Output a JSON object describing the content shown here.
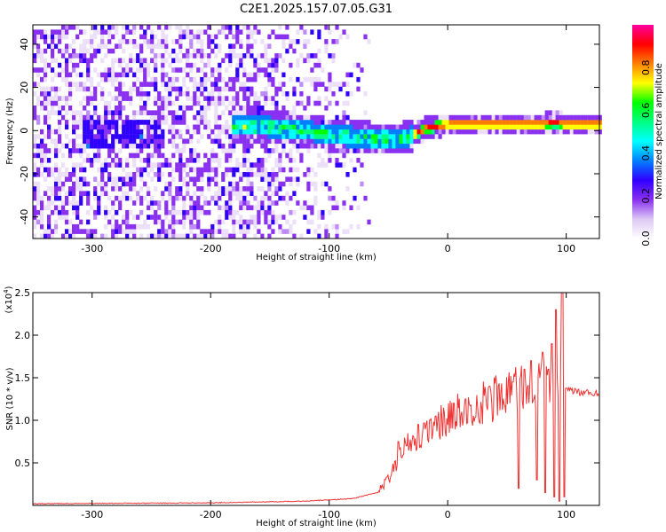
{
  "title": "C2E1.2025.157.07.05.G31",
  "chart_data": [
    {
      "type": "heatmap",
      "xlabel": "Height of straight line (km)",
      "ylabel": "Frequency (Hz)",
      "xlim": [
        -350,
        128
      ],
      "ylim": [
        -50,
        49
      ],
      "xticks": [
        -300,
        -200,
        -100,
        0,
        100
      ],
      "yticks": [
        -40,
        -20,
        0,
        20,
        40
      ],
      "colorbar": {
        "label": "Normalized spectral amplitude",
        "range": [
          0,
          1
        ],
        "ticks": [
          "0.0",
          "0.2",
          "0.4",
          "0.6",
          "0.8"
        ],
        "colors": [
          "#ffffff",
          "#dcc8f4",
          "#8a30f0",
          "#3000ff",
          "#0080ff",
          "#00ffff",
          "#00ff80",
          "#00ff00",
          "#ffff00",
          "#ff8000",
          "#ff0000",
          "#ff00a0"
        ]
      },
      "ridge": {
        "x": [
          -180,
          -160,
          -140,
          -120,
          -100,
          -80,
          -60,
          -50,
          -40,
          -30,
          -20,
          0,
          20,
          40,
          60,
          80,
          90,
          95,
          100,
          128
        ],
        "y": [
          1,
          1,
          0,
          -1,
          -3,
          -4,
          -5,
          -5,
          -5,
          -3,
          0,
          2,
          2,
          2,
          2,
          2,
          3,
          2,
          2,
          2
        ]
      }
    },
    {
      "type": "line",
      "xlabel": "Height of straight line (km)",
      "ylabel": "SNR (10 * v/v)",
      "y_scale_note": "(x10",
      "y_scale_exp": "4",
      "xlim": [
        -350,
        128
      ],
      "ylim": [
        0,
        2.5
      ],
      "xticks": [
        -300,
        -200,
        -100,
        0,
        100
      ],
      "yticks": [
        "0.5",
        "1.0",
        "1.5",
        "2.0",
        "2.5"
      ],
      "color": "#ee3333",
      "envelope": {
        "x": [
          -350,
          -200,
          -120,
          -80,
          -60,
          -50,
          -45,
          -40,
          -30,
          -20,
          -10,
          0,
          20,
          40,
          60,
          80,
          90,
          95,
          98,
          100,
          110,
          128
        ],
        "y": [
          0.02,
          0.03,
          0.05,
          0.08,
          0.15,
          0.3,
          0.45,
          0.6,
          0.75,
          0.85,
          0.95,
          1.05,
          1.15,
          1.25,
          1.35,
          1.4,
          1.45,
          1.45,
          1.38,
          1.35,
          1.33,
          1.32
        ]
      },
      "spikes": [
        {
          "x": -42,
          "y": 0.75
        },
        {
          "x": -35,
          "y": 0.7
        },
        {
          "x": -25,
          "y": 0.95
        },
        {
          "x": -15,
          "y": 1.0
        },
        {
          "x": -10,
          "y": 1.05
        },
        {
          "x": 5,
          "y": 1.2
        },
        {
          "x": 15,
          "y": 1.25
        },
        {
          "x": 35,
          "y": 1.4
        },
        {
          "x": 55,
          "y": 1.45
        },
        {
          "x": 65,
          "y": 1.6
        },
        {
          "x": 70,
          "y": 1.7
        },
        {
          "x": 75,
          "y": 1.75
        },
        {
          "x": 80,
          "y": 1.8
        },
        {
          "x": 85,
          "y": 1.6
        },
        {
          "x": 88,
          "y": 1.9
        },
        {
          "x": 91,
          "y": 2.3
        },
        {
          "x": 94,
          "y": 2.5
        },
        {
          "x": 96,
          "y": 2.6
        },
        {
          "x": 97,
          "y": 2.5
        }
      ],
      "dips": [
        {
          "x": 60,
          "y": 0.2
        },
        {
          "x": 75,
          "y": 0.3
        },
        {
          "x": 82,
          "y": 0.15
        },
        {
          "x": 90,
          "y": 0.1
        },
        {
          "x": 94,
          "y": 0.05
        },
        {
          "x": 98,
          "y": 0.1
        }
      ]
    }
  ]
}
